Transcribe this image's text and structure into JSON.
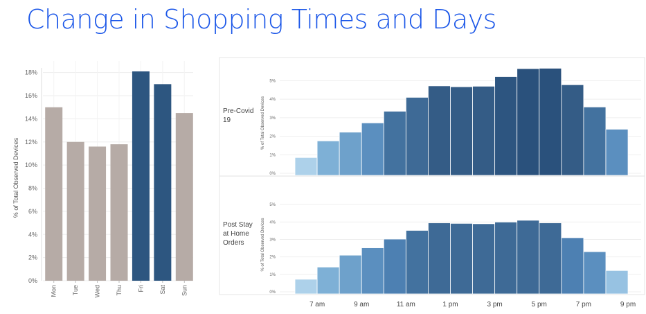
{
  "page_title": "Change in Shopping Times and Days",
  "chart_data": [
    {
      "type": "bar",
      "categories": [
        "Mon",
        "Tue",
        "Wed",
        "Thu",
        "Fri",
        "Sat",
        "Sun"
      ],
      "values": [
        15.0,
        12.0,
        11.6,
        11.8,
        18.1,
        17.0,
        14.5
      ],
      "colors": [
        "#b6aba6",
        "#b6aba6",
        "#b6aba6",
        "#b6aba6",
        "#2d5680",
        "#2d5680",
        "#b6aba6"
      ],
      "ylabel": "% of Total Observed Devices",
      "ylim": [
        0,
        19
      ],
      "yticks": [
        "0%",
        "2%",
        "4%",
        "6%",
        "8%",
        "10%",
        "12%",
        "14%",
        "16%",
        "18%"
      ],
      "grid": true
    },
    {
      "type": "bar",
      "row_label": "Pre-Covid 19",
      "ylabel": "% of Total Observed Devices",
      "ylim": [
        0,
        5.8
      ],
      "yticks": [
        "0%",
        "1%",
        "2%",
        "3%",
        "4%",
        "5%"
      ],
      "bins": [
        "6–7 am",
        "7–8 am",
        "8–9 am",
        "9–10 am",
        "10–11 am",
        "11 am–12 pm",
        "12–1 pm",
        "1–2 pm",
        "2–3 pm",
        "3–4 pm",
        "4–5 pm",
        "5–6 pm",
        "6–7 pm",
        "7–8 pm",
        "8–9 pm"
      ],
      "values": [
        0.85,
        1.75,
        2.22,
        2.72,
        3.35,
        4.1,
        4.72,
        4.67,
        4.7,
        5.22,
        5.65,
        5.67,
        4.78,
        3.58,
        2.38
      ]
    },
    {
      "type": "bar",
      "row_label": "Post Stay at Home Orders",
      "ylabel": "% of Total Observed Devices",
      "ylim": [
        0,
        5.8
      ],
      "yticks": [
        "0%",
        "1%",
        "2%",
        "3%",
        "4%",
        "5%"
      ],
      "bins": [
        "6–7 am",
        "7–8 am",
        "8–9 am",
        "9–10 am",
        "10–11 am",
        "11 am–12 pm",
        "12–1 pm",
        "1–2 pm",
        "2–3 pm",
        "3–4 pm",
        "4–5 pm",
        "5–6 pm",
        "6–7 pm",
        "7–8 pm",
        "8–9 pm"
      ],
      "values": [
        0.72,
        1.42,
        2.1,
        2.52,
        3.02,
        3.52,
        3.95,
        3.92,
        3.9,
        4.0,
        4.1,
        3.95,
        3.1,
        2.3,
        1.22
      ],
      "xticks": [
        "7 am",
        "9 am",
        "11 am",
        "1 pm",
        "3 pm",
        "5 pm",
        "7 pm",
        "9 pm"
      ]
    }
  ]
}
